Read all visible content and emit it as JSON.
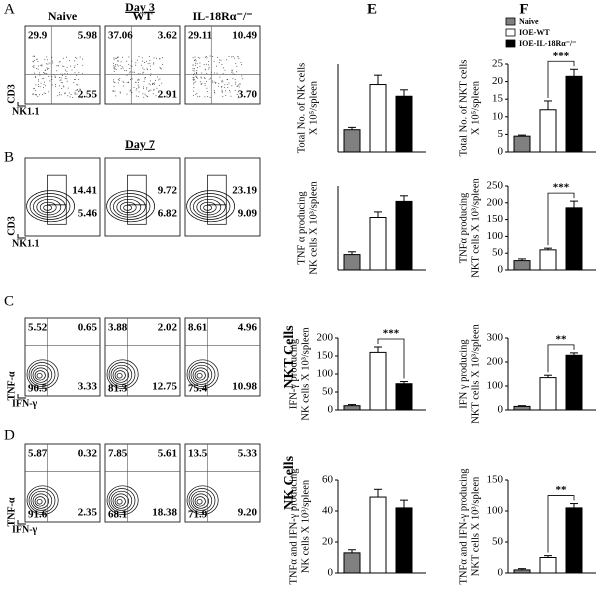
{
  "flow_rows": [
    {
      "letter": "A",
      "title": "Day 3",
      "columns": [
        "Naive",
        "WT",
        "IL-18Rα⁻/⁻"
      ],
      "ylabel": "CD3",
      "xlabel": "NK1.1",
      "plots": [
        {
          "UL": "29.9",
          "UR": "5.98",
          "LR": "2.55"
        },
        {
          "UL": "37.06",
          "UR": "3.62",
          "LR": "2.91"
        },
        {
          "UL": "29.11",
          "UR": "10.49",
          "LR": "3.70"
        }
      ]
    },
    {
      "letter": "B",
      "title": "Day 7",
      "ylabel": "CD3",
      "xlabel": "NK1.1",
      "plots": [
        {
          "upper": "14.41",
          "lower": "5.46"
        },
        {
          "upper": "9.72",
          "lower": "6.82"
        },
        {
          "upper": "23.19",
          "lower": "9.09"
        }
      ]
    },
    {
      "letter": "C",
      "side": "NKT Cells",
      "ylabel": "TNF-α",
      "xlabel": "IFN-γ",
      "plots": [
        {
          "UL": "5.52",
          "UR": "0.65",
          "LL": "90.5",
          "LR": "3.33"
        },
        {
          "UL": "3.88",
          "UR": "2.02",
          "LL": "81.3",
          "LR": "12.75"
        },
        {
          "UL": "8.61",
          "UR": "4.96",
          "LL": "75.4",
          "LR": "10.98"
        }
      ]
    },
    {
      "letter": "D",
      "side": "NK Cells",
      "ylabel": "TNF-α",
      "xlabel": "IFN-γ",
      "plots": [
        {
          "UL": "5.87",
          "UR": "0.32",
          "LL": "91.6",
          "LR": "2.35"
        },
        {
          "UL": "7.85",
          "UR": "5.61",
          "LL": "68.1",
          "LR": "18.38"
        },
        {
          "UL": "13.5",
          "UR": "5.33",
          "LL": "71.9",
          "LR": "9.20"
        }
      ]
    }
  ],
  "chart_letters": [
    "E",
    "F"
  ],
  "chart_data": [
    {
      "type": "bar",
      "ylabel": [
        "Total No. of NK cells",
        "X 10⁵/spleen"
      ],
      "ylim": [
        0,
        15
      ],
      "series": [
        {
          "color": "#808080",
          "values": [
            3.8
          ],
          "errors": [
            0.4
          ]
        },
        {
          "color": "#ffffff",
          "values": [
            11.5
          ],
          "errors": [
            1.6
          ]
        },
        {
          "color": "#000000",
          "values": [
            9.5
          ],
          "errors": [
            1.1
          ]
        }
      ]
    },
    {
      "type": "bar",
      "ylabel": [
        "TNF α producing",
        "NK cells X 10³/spleen"
      ],
      "ylim": [
        0,
        120
      ],
      "series": [
        {
          "color": "#808080",
          "values": [
            22
          ],
          "errors": [
            4
          ]
        },
        {
          "color": "#ffffff",
          "values": [
            75
          ],
          "errors": [
            8
          ]
        },
        {
          "color": "#000000",
          "values": [
            98
          ],
          "errors": [
            8
          ]
        }
      ]
    },
    {
      "type": "bar",
      "ylabel": [
        "IFN-γ producing",
        "NK cells X 10³/spleen"
      ],
      "ylim": [
        0,
        200
      ],
      "yticks": [
        0,
        50,
        100,
        150,
        200
      ],
      "annotation": "***",
      "series": [
        {
          "color": "#808080",
          "values": [
            12
          ],
          "errors": [
            3
          ]
        },
        {
          "color": "#ffffff",
          "values": [
            160
          ],
          "errors": [
            15
          ]
        },
        {
          "color": "#000000",
          "values": [
            73
          ],
          "errors": [
            6
          ]
        }
      ]
    },
    {
      "type": "bar",
      "ylabel": [
        "TNFα and IFN-γ producing",
        "NK cells X 10³/spleen"
      ],
      "ylim": [
        0,
        60
      ],
      "yticks": [
        0,
        20,
        40,
        60
      ],
      "series": [
        {
          "color": "#808080",
          "values": [
            13
          ],
          "errors": [
            2
          ]
        },
        {
          "color": "#ffffff",
          "values": [
            49
          ],
          "errors": [
            5
          ]
        },
        {
          "color": "#000000",
          "values": [
            42
          ],
          "errors": [
            5
          ]
        }
      ]
    },
    {
      "type": "bar",
      "ylabel": [
        "Total No. of NKT cells",
        "X 10⁵/spleen"
      ],
      "ylim": [
        0,
        25
      ],
      "yticks": [
        0,
        5,
        10,
        15,
        20,
        25
      ],
      "annotation": "***",
      "legend": "top",
      "series": [
        {
          "name": "Naive",
          "color": "#808080",
          "values": [
            4.5
          ],
          "errors": [
            0.3
          ]
        },
        {
          "name": "IOE-WT",
          "color": "#ffffff",
          "values": [
            12
          ],
          "errors": [
            2.5
          ]
        },
        {
          "name": "IOE-IL-18Rα⁻/⁻",
          "color": "#000000",
          "values": [
            21.5
          ],
          "errors": [
            2
          ]
        }
      ]
    },
    {
      "type": "bar",
      "ylabel": [
        "TNFα producing",
        "NKT cells X 10³/spleen"
      ],
      "ylim": [
        0,
        250
      ],
      "yticks": [
        0,
        50,
        100,
        150,
        200,
        250
      ],
      "annotation": "***",
      "series": [
        {
          "color": "#808080",
          "values": [
            28
          ],
          "errors": [
            5
          ]
        },
        {
          "color": "#ffffff",
          "values": [
            60
          ],
          "errors": [
            5
          ]
        },
        {
          "color": "#000000",
          "values": [
            185
          ],
          "errors": [
            20
          ]
        }
      ]
    },
    {
      "type": "bar",
      "ylabel": [
        "IFN γ producing",
        "NKT cells X 10³/spleen"
      ],
      "ylim": [
        0,
        300
      ],
      "yticks": [
        0,
        100,
        200,
        300
      ],
      "annotation": "**",
      "series": [
        {
          "color": "#808080",
          "values": [
            15
          ],
          "errors": [
            3
          ]
        },
        {
          "color": "#ffffff",
          "values": [
            135
          ],
          "errors": [
            10
          ]
        },
        {
          "color": "#000000",
          "values": [
            228
          ],
          "errors": [
            10
          ]
        }
      ]
    },
    {
      "type": "bar",
      "ylabel": [
        "TNFα and IFN-γ producing",
        "NKT cells X 10³/spleen"
      ],
      "ylim": [
        0,
        150
      ],
      "yticks": [
        0,
        50,
        100,
        150
      ],
      "annotation": "**",
      "series": [
        {
          "color": "#808080",
          "values": [
            5
          ],
          "errors": [
            2
          ]
        },
        {
          "color": "#ffffff",
          "values": [
            25
          ],
          "errors": [
            3
          ]
        },
        {
          "color": "#000000",
          "values": [
            105
          ],
          "errors": [
            7
          ]
        }
      ]
    }
  ]
}
